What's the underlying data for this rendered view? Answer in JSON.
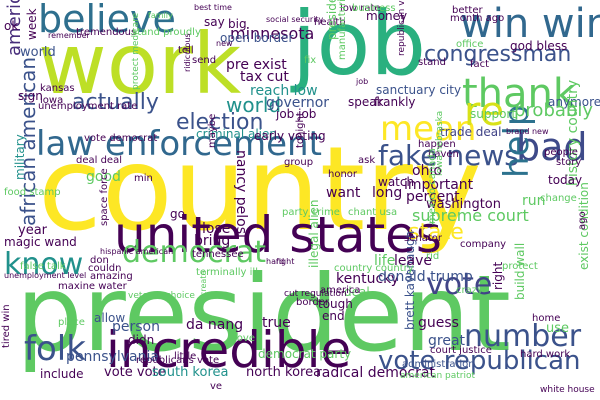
{
  "palette": {
    "dark_purple": "#440154",
    "indigo": "#3b528b",
    "teal": "#21918c",
    "green": "#5ec962",
    "yellow": "#fde725"
  },
  "words": [
    {
      "id": "country",
      "text": "country",
      "color": "#fde725"
    },
    {
      "id": "president",
      "text": "president",
      "color": "#5ec962"
    },
    {
      "id": "job",
      "text": "job",
      "color": "#2ab07f"
    },
    {
      "id": "work",
      "text": "work",
      "color": "#bddf26"
    },
    {
      "id": "united-states",
      "text": "united states",
      "color": "#440154"
    },
    {
      "id": "incredible",
      "text": "incredible",
      "color": "#440154"
    },
    {
      "id": "law-enforcement",
      "text": "law enforcement",
      "color": "#31688e"
    },
    {
      "id": "believe",
      "text": "believe",
      "color": "#2e6f8e"
    },
    {
      "id": "thank",
      "text": "thank",
      "color": "#5ec962"
    },
    {
      "id": "win-win",
      "text": "win win",
      "color": "#31688e"
    },
    {
      "id": "mean",
      "text": "mean",
      "color": "#fde725"
    },
    {
      "id": "bad",
      "text": "bad",
      "color": "#3e4a89"
    },
    {
      "id": "fake-news",
      "text": "fake news",
      "color": "#3b528b"
    },
    {
      "id": "help",
      "text": "help",
      "color": "#2c728e"
    },
    {
      "id": "know",
      "text": "know",
      "color": "#21918c"
    },
    {
      "id": "democrat",
      "text": "democrat",
      "color": "#5ec962"
    },
    {
      "id": "vote",
      "text": "vote",
      "color": "#414487"
    },
    {
      "id": "number",
      "text": "number",
      "color": "#3b528b"
    },
    {
      "id": "folk",
      "text": "folk",
      "color": "#3b528b"
    },
    {
      "id": "vote-republican",
      "text": "vote republican",
      "color": "#3b528b"
    },
    {
      "id": "re",
      "text": "re",
      "color": "#d8e219"
    },
    {
      "id": "congressman",
      "text": "congressman",
      "color": "#3b528b"
    },
    {
      "id": "world",
      "text": "world",
      "color": "#21918c"
    },
    {
      "id": "actually",
      "text": "actually",
      "color": "#3b528b"
    },
    {
      "id": "election",
      "text": "election",
      "color": "#3b528b"
    },
    {
      "id": "american",
      "text": "american",
      "color": "#472d7b"
    },
    {
      "id": "african-american",
      "text": "african american",
      "color": "#3b528b"
    },
    {
      "id": "state",
      "text": "state",
      "color": "#fde725"
    },
    {
      "id": "probably",
      "text": "probably",
      "color": "#5ec962"
    },
    {
      "id": "minnesota",
      "text": "minnesota",
      "color": "#440154"
    },
    {
      "id": "open-border",
      "text": "open border",
      "color": "#3b528b"
    },
    {
      "id": "pre-exist",
      "text": "pre exist",
      "color": "#440154"
    },
    {
      "id": "tax-cut",
      "text": "tax cut",
      "color": "#440154"
    },
    {
      "id": "reach-low",
      "text": "reach low",
      "color": "#21918c"
    },
    {
      "id": "governor",
      "text": "governor",
      "color": "#3b528b"
    },
    {
      "id": "criminal-alien",
      "text": "criminal alien",
      "color": "#21918c"
    },
    {
      "id": "job-job",
      "text": "job job",
      "color": "#440154"
    },
    {
      "id": "trade-deal",
      "text": "trade deal",
      "color": "#414487"
    },
    {
      "id": "important",
      "text": "important",
      "color": "#440154"
    },
    {
      "id": "percent",
      "text": "percent",
      "color": "#440154"
    },
    {
      "id": "washington",
      "text": "washington",
      "color": "#440154"
    },
    {
      "id": "nancy-pelosi",
      "text": "nancy pelosi",
      "color": "#440154"
    },
    {
      "id": "ohio",
      "text": "ohio",
      "color": "#440154"
    },
    {
      "id": "supreme-court",
      "text": "supreme court",
      "color": "#5ec962"
    },
    {
      "id": "lose",
      "text": "lose",
      "color": "#440154"
    },
    {
      "id": "bring",
      "text": "bring",
      "color": "#440154"
    },
    {
      "id": "kentucky",
      "text": "kentucky",
      "color": "#440154"
    },
    {
      "id": "donald-trump",
      "text": "donald trump",
      "color": "#3b528b"
    },
    {
      "id": "da-nang",
      "text": "da nang",
      "color": "#440154"
    },
    {
      "id": "guess",
      "text": "guess",
      "color": "#440154"
    },
    {
      "id": "person",
      "text": "person",
      "color": "#3b528b"
    },
    {
      "id": "pennsylvania",
      "text": "pennsylvania",
      "color": "#3b528b"
    },
    {
      "id": "vote-vote",
      "text": "vote vote",
      "color": "#440154"
    },
    {
      "id": "south-korea",
      "text": "south korea",
      "color": "#21918c"
    },
    {
      "id": "north-korea",
      "text": "north korea",
      "color": "#440154"
    },
    {
      "id": "radical-democrat",
      "text": "radical democrat",
      "color": "#440154"
    },
    {
      "id": "include",
      "text": "include",
      "color": "#440154"
    },
    {
      "id": "say",
      "text": "say",
      "color": "#440154"
    },
    {
      "id": "world-small",
      "text": "world",
      "color": "#3b528b"
    },
    {
      "id": "money",
      "text": "money",
      "color": "#440154"
    },
    {
      "id": "god-bless",
      "text": "god bless",
      "color": "#440154"
    },
    {
      "id": "big",
      "text": "big",
      "color": "#440154"
    },
    {
      "id": "health",
      "text": "health",
      "color": "#440154"
    },
    {
      "id": "anymore",
      "text": "anymore",
      "color": "#3b528b"
    },
    {
      "id": "support",
      "text": "support",
      "color": "#5ec962"
    },
    {
      "id": "speak",
      "text": "speak",
      "color": "#440154"
    },
    {
      "id": "history-country",
      "text": "history country",
      "color": "#5ec962"
    },
    {
      "id": "build-wall",
      "text": "build wall",
      "color": "#5ec962"
    },
    {
      "id": "run",
      "text": "run",
      "color": "#5ec962"
    },
    {
      "id": "today",
      "text": "today",
      "color": "#440154"
    },
    {
      "id": "brett-kavanaugh",
      "text": "brett kavanaugh",
      "color": "#3b528b"
    },
    {
      "id": "court-justice",
      "text": "court justice",
      "color": "#440154"
    },
    {
      "id": "great",
      "text": "great",
      "color": "#3b528b"
    },
    {
      "id": "hard-work",
      "text": "hard work",
      "color": "#440154"
    },
    {
      "id": "white-house",
      "text": "white house",
      "color": "#440154"
    },
    {
      "id": "allow",
      "text": "allow",
      "color": "#3b528b"
    },
    {
      "id": "true",
      "text": "true",
      "color": "#440154"
    },
    {
      "id": "didn",
      "text": "didn",
      "color": "#440154"
    },
    {
      "id": "maybe",
      "text": "maybe",
      "color": "#440154"
    },
    {
      "id": "military",
      "text": "military",
      "color": "#21918c"
    },
    {
      "id": "year",
      "text": "year",
      "color": "#440154"
    },
    {
      "id": "magic-wand",
      "text": "magic wand",
      "color": "#440154"
    },
    {
      "id": "good",
      "text": "good",
      "color": "#5ec962"
    },
    {
      "id": "want",
      "text": "want",
      "color": "#440154"
    },
    {
      "id": "long",
      "text": "long",
      "color": "#440154"
    },
    {
      "id": "watch",
      "text": "watch",
      "color": "#440154"
    },
    {
      "id": "life",
      "text": "life",
      "color": "#5ec962"
    },
    {
      "id": "leave",
      "text": "leave",
      "color": "#440154"
    },
    {
      "id": "use",
      "text": "use",
      "color": "#5ec962"
    },
    {
      "id": "right",
      "text": "right",
      "color": "#440154"
    },
    {
      "id": "frankly",
      "text": "frankly",
      "color": "#440154"
    },
    {
      "id": "sanctuary-city",
      "text": "sanctuary city",
      "color": "#3b528b"
    },
    {
      "id": "iowa",
      "text": "iowa",
      "color": "#440154"
    },
    {
      "id": "week",
      "text": "week",
      "color": "#440154"
    },
    {
      "id": "sign",
      "text": "sign",
      "color": "#440154"
    },
    {
      "id": "tremendous",
      "text": "tremendous",
      "color": "#440154"
    },
    {
      "id": "stand-proudly",
      "text": "stand proudly",
      "color": "#5ec962"
    },
    {
      "id": "tell",
      "text": "tell",
      "color": "#440154"
    },
    {
      "id": "send",
      "text": "send",
      "color": "#440154"
    },
    {
      "id": "low-rate",
      "text": "low rate",
      "color": "#440154"
    },
    {
      "id": "business",
      "text": "business",
      "color": "#5ec962"
    },
    {
      "id": "better",
      "text": "better",
      "color": "#440154"
    },
    {
      "id": "month-ago",
      "text": "month ago",
      "color": "#440154"
    },
    {
      "id": "best-time",
      "text": "best time",
      "color": "#440154"
    },
    {
      "id": "family",
      "text": "family",
      "color": "#5ec962"
    },
    {
      "id": "remember",
      "text": "remember",
      "color": "#440154"
    },
    {
      "id": "unemployment-rate",
      "text": "unemployment rate",
      "color": "#440154"
    },
    {
      "id": "ok",
      "text": "ok",
      "color": "#440154"
    },
    {
      "id": "fact",
      "text": "fact",
      "color": "#440154"
    },
    {
      "id": "stand",
      "text": "stand",
      "color": "#440154"
    },
    {
      "id": "office",
      "text": "office",
      "color": "#5ec962"
    },
    {
      "id": "early-voting",
      "text": "early voting",
      "color": "#440154"
    },
    {
      "id": "happen",
      "text": "happen",
      "color": "#440154"
    },
    {
      "id": "tonight",
      "text": "tonight",
      "color": "#440154"
    },
    {
      "id": "group",
      "text": "group",
      "color": "#440154"
    },
    {
      "id": "ask",
      "text": "ask",
      "color": "#440154"
    },
    {
      "id": "honor",
      "text": "honor",
      "color": "#440154"
    },
    {
      "id": "haven",
      "text": "haven",
      "color": "#440154"
    },
    {
      "id": "story",
      "text": "story",
      "color": "#440154"
    },
    {
      "id": "people",
      "text": "people",
      "color": "#440154"
    },
    {
      "id": "chant-usa",
      "text": "chant usa",
      "color": "#5ec962"
    },
    {
      "id": "party-crime",
      "text": "party crime",
      "color": "#5ec962"
    },
    {
      "id": "company",
      "text": "company",
      "color": "#440154"
    },
    {
      "id": "mexico-canada",
      "text": "mexico canada",
      "color": "#5ec962"
    },
    {
      "id": "deal",
      "text": "deal",
      "color": "#5ec962"
    },
    {
      "id": "tough",
      "text": "tough",
      "color": "#440154"
    },
    {
      "id": "end",
      "text": "end",
      "color": "#440154"
    },
    {
      "id": "border",
      "text": "border",
      "color": "#440154"
    },
    {
      "id": "america",
      "text": "america",
      "color": "#440154"
    },
    {
      "id": "democrat-party",
      "text": "democrat party",
      "color": "#5ec962"
    },
    {
      "id": "republicans-vote",
      "text": "republicans vote",
      "color": "#440154"
    },
    {
      "id": "administration",
      "text": "administration",
      "color": "#3b528b"
    },
    {
      "id": "maxine-water",
      "text": "maxine water",
      "color": "#440154"
    },
    {
      "id": "amazing",
      "text": "amazing",
      "color": "#440154"
    },
    {
      "id": "couldn",
      "text": "couldn",
      "color": "#440154"
    },
    {
      "id": "don",
      "text": "don",
      "color": "#440154"
    },
    {
      "id": "place",
      "text": "place",
      "color": "#5ec962"
    },
    {
      "id": "false-talk",
      "text": "false talk",
      "color": "#5ec962"
    },
    {
      "id": "unemployment-level",
      "text": "unemployment level",
      "color": "#440154"
    },
    {
      "id": "tennessee",
      "text": "tennessee",
      "color": "#440154"
    },
    {
      "id": "food-stamp",
      "text": "food stamp",
      "color": "#5ec962"
    },
    {
      "id": "deal-small",
      "text": "deal deal",
      "color": "#440154"
    },
    {
      "id": "vote-democrat",
      "text": "vote democrat",
      "color": "#440154"
    },
    {
      "id": "protect-medicare",
      "text": "protect medicare",
      "color": "#5ec962"
    },
    {
      "id": "go",
      "text": "go",
      "color": "#440154"
    },
    {
      "id": "min",
      "text": "min",
      "color": "#440154"
    },
    {
      "id": "space-force",
      "text": "space force",
      "color": "#440154"
    },
    {
      "id": "president-trump",
      "text": "president trump",
      "color": "#5ec962"
    },
    {
      "id": "manufacturing-job",
      "text": "manufacturing job",
      "color": "#5ec962"
    },
    {
      "id": "republican-vote",
      "text": "republican vote",
      "color": "#440154"
    },
    {
      "id": "exist-condition",
      "text": "exist condition",
      "color": "#5ec962"
    },
    {
      "id": "change",
      "text": "change",
      "color": "#5ec962"
    },
    {
      "id": "ago",
      "text": "ago",
      "color": "#440154"
    },
    {
      "id": "senator",
      "text": "senator",
      "color": "#440154"
    },
    {
      "id": "illegal-alien",
      "text": "illegal alien",
      "color": "#5ec962"
    },
    {
      "id": "tired-win",
      "text": "tired win",
      "color": "#440154"
    },
    {
      "id": "home",
      "text": "home",
      "color": "#440154"
    },
    {
      "id": "country-country",
      "text": "country country",
      "color": "#5ec962"
    },
    {
      "id": "cut-regulation",
      "text": "cut regulation",
      "color": "#440154"
    },
    {
      "id": "hispanic-american",
      "text": "hispanic american",
      "color": "#440154"
    },
    {
      "id": "veteran-choice",
      "text": "veteran choice",
      "color": "#5ec962"
    },
    {
      "id": "terminally-ill",
      "text": "terminally ill",
      "color": "#5ec962"
    },
    {
      "id": "brand-new",
      "text": "brand new",
      "color": "#440154"
    },
    {
      "id": "ve",
      "text": "ve",
      "color": "#440154"
    },
    {
      "id": "protect",
      "text": "protect",
      "color": "#5ec962"
    },
    {
      "id": "little",
      "text": "little",
      "color": "#440154"
    },
    {
      "id": "love",
      "text": "love",
      "color": "#5ec962"
    },
    {
      "id": "american-patriot",
      "text": "american patriot",
      "color": "#5ec962"
    },
    {
      "id": "new",
      "text": "new",
      "color": "#440154"
    },
    {
      "id": "kansas",
      "text": "kansas",
      "color": "#440154"
    },
    {
      "id": "fix",
      "text": "fix",
      "color": "#5ec962"
    },
    {
      "id": "hard",
      "text": "hard",
      "color": "#440154"
    },
    {
      "id": "rid",
      "text": "rid",
      "color": "#5ec962"
    },
    {
      "id": "fight",
      "text": "fight",
      "color": "#440154"
    },
    {
      "id": "job-pre",
      "text": "job",
      "color": "#440154"
    },
    {
      "id": "iowa-nebraska",
      "text": "iowa nebraska",
      "color": "#5ec962"
    },
    {
      "id": "ridiculous",
      "text": "ridiculous",
      "color": "#440154"
    },
    {
      "id": "create",
      "text": "create",
      "color": "#5ec962"
    },
    {
      "id": "crazy",
      "text": "crazy",
      "color": "#5ec962"
    },
    {
      "id": "social-security",
      "text": "social security",
      "color": "#440154"
    }
  ]
}
